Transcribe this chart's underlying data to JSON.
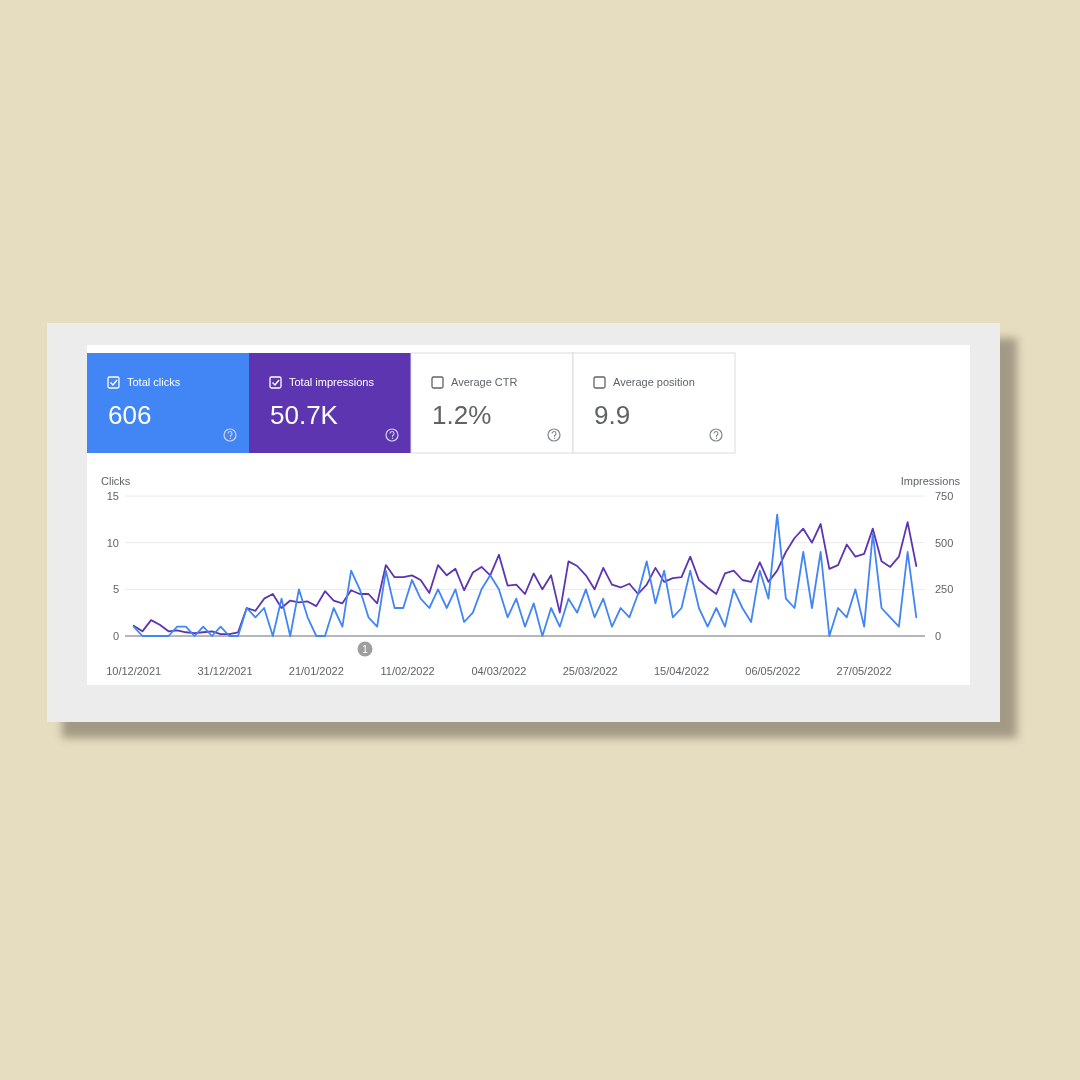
{
  "chart_data": [
    {
      "type": "other",
      "categories": [
        "Total clicks",
        "Total impressions",
        "Average CTR",
        "Average position"
      ],
      "value_labels": [
        "606",
        "50.7K",
        "1.2%",
        "9.9"
      ],
      "colors": [
        "#4285f4",
        "#5e35b1",
        "#ffffff",
        "#ffffff"
      ]
    },
    {
      "type": "line",
      "ylabel": "Clicks",
      "y2label": "Impressions",
      "grid": "y",
      "x": [
        "2021-12-10",
        "2021-12-12",
        "2021-12-14",
        "2021-12-16",
        "2021-12-18",
        "2021-12-20",
        "2021-12-22",
        "2021-12-24",
        "2021-12-26",
        "2021-12-28",
        "2021-12-30",
        "2022-01-01",
        "2022-01-03",
        "2022-01-05",
        "2022-01-07",
        "2022-01-09",
        "2022-01-11",
        "2022-01-13",
        "2022-01-15",
        "2022-01-17",
        "2022-01-19",
        "2022-01-21",
        "2022-01-23",
        "2022-01-25",
        "2022-01-27",
        "2022-01-29",
        "2022-01-31",
        "2022-02-02",
        "2022-02-04",
        "2022-02-06",
        "2022-02-08",
        "2022-02-10",
        "2022-02-12",
        "2022-02-14",
        "2022-02-16",
        "2022-02-18",
        "2022-02-20",
        "2022-02-22",
        "2022-02-24",
        "2022-02-26",
        "2022-02-28",
        "2022-03-02",
        "2022-03-04",
        "2022-03-06",
        "2022-03-08",
        "2022-03-10",
        "2022-03-12",
        "2022-03-14",
        "2022-03-16",
        "2022-03-18",
        "2022-03-20",
        "2022-03-22",
        "2022-03-24",
        "2022-03-26",
        "2022-03-28",
        "2022-03-30",
        "2022-04-01",
        "2022-04-03",
        "2022-04-05",
        "2022-04-07",
        "2022-04-09",
        "2022-04-11",
        "2022-04-13",
        "2022-04-15",
        "2022-04-17",
        "2022-04-19",
        "2022-04-21",
        "2022-04-23",
        "2022-04-25",
        "2022-04-27",
        "2022-04-29",
        "2022-05-01",
        "2022-05-03",
        "2022-05-05",
        "2022-05-07",
        "2022-05-09",
        "2022-05-11",
        "2022-05-13",
        "2022-05-15",
        "2022-05-17",
        "2022-05-19",
        "2022-05-21",
        "2022-05-23",
        "2022-05-25",
        "2022-05-27",
        "2022-05-29",
        "2022-05-31",
        "2022-06-02",
        "2022-06-04",
        "2022-06-06",
        "2022-06-08"
      ],
      "xlim": [
        "2021-12-08",
        "2022-06-10"
      ],
      "xticks": [
        {
          "value": "2021-12-10",
          "label": "10/12/2021"
        },
        {
          "value": "2021-12-31",
          "label": "31/12/2021"
        },
        {
          "value": "2022-01-21",
          "label": "21/01/2022"
        },
        {
          "value": "2022-02-11",
          "label": "11/02/2022"
        },
        {
          "value": "2022-03-04",
          "label": "04/03/2022"
        },
        {
          "value": "2022-03-25",
          "label": "25/03/2022"
        },
        {
          "value": "2022-04-15",
          "label": "15/04/2022"
        },
        {
          "value": "2022-05-06",
          "label": "06/05/2022"
        },
        {
          "value": "2022-05-27",
          "label": "27/05/2022"
        }
      ],
      "ylim": [
        0,
        15
      ],
      "yticks": [
        0,
        5,
        10,
        15
      ],
      "y2lim": [
        0,
        750
      ],
      "y2ticks": [
        0,
        250,
        500,
        750
      ],
      "annotations": [
        "1"
      ],
      "series": [
        {
          "color": "#5e35b1",
          "axis": "y2",
          "values": [
            55,
            25,
            85,
            60,
            25,
            30,
            20,
            15,
            20,
            25,
            10,
            10,
            20,
            150,
            135,
            200,
            225,
            150,
            190,
            180,
            185,
            160,
            240,
            190,
            175,
            245,
            225,
            225,
            175,
            380,
            315,
            315,
            325,
            300,
            230,
            380,
            325,
            360,
            245,
            340,
            370,
            325,
            435,
            270,
            275,
            225,
            335,
            250,
            325,
            125,
            400,
            375,
            325,
            250,
            365,
            275,
            260,
            280,
            225,
            275,
            365,
            290,
            310,
            315,
            425,
            300,
            260,
            225,
            335,
            350,
            300,
            290,
            395,
            290,
            350,
            450,
            525,
            575,
            500,
            600,
            360,
            380,
            490,
            425,
            440,
            575,
            400,
            370,
            425,
            610,
            375
          ]
        },
        {
          "color": "#4285f4",
          "values": [
            1,
            0,
            0,
            0,
            0,
            1,
            1,
            0,
            1,
            0,
            1,
            0,
            0,
            3,
            2,
            3,
            0,
            4,
            0,
            5,
            2,
            0,
            0,
            3,
            1,
            7,
            5,
            2,
            1,
            7,
            3,
            3,
            6,
            4,
            3,
            5,
            3,
            5,
            1.5,
            2.5,
            5,
            6.5,
            5,
            2,
            4,
            1,
            3.5,
            0,
            3,
            1,
            4,
            2.5,
            5,
            2,
            4,
            1,
            3,
            2,
            4.5,
            8,
            3.5,
            7,
            2,
            3,
            7,
            3,
            1,
            3,
            1,
            5,
            3,
            1.5,
            7,
            4,
            13,
            4,
            3,
            9,
            3,
            9,
            0,
            3,
            2,
            5,
            1,
            11,
            3,
            2,
            1,
            9,
            2
          ]
        }
      ]
    }
  ]
}
